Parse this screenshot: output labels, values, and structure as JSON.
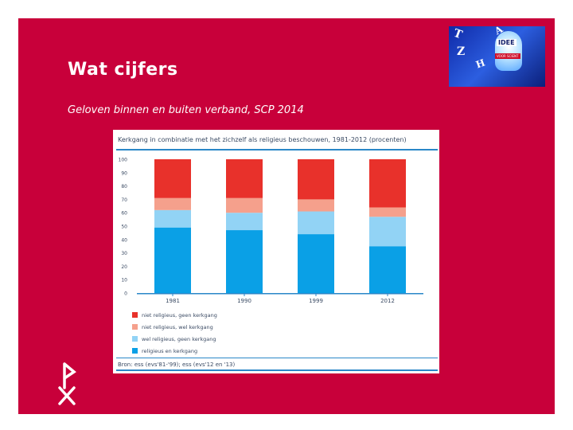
{
  "slide": {
    "title": "Wat cijfers",
    "subtitle": "Geloven binnen en buiten verband, SCP 2014",
    "background_color": "#c8003a",
    "logo": {
      "word": "IDEE",
      "tagline": "VOOR SCIENT",
      "icon": "lightbulb-logo"
    }
  },
  "chart_data": {
    "type": "bar",
    "stacked": true,
    "title": "Kerkgang in combinatie met het zichzelf als religieus beschouwen, 1981-2012 (procenten)",
    "categories": [
      "1981",
      "1990",
      "1999",
      "2012"
    ],
    "ylim": [
      0,
      100
    ],
    "yticks": [
      0,
      10,
      20,
      30,
      40,
      50,
      60,
      70,
      80,
      90,
      100
    ],
    "grid": false,
    "legend_position": "bottom-left",
    "series": [
      {
        "name": "religieus en kerkgang",
        "color": "#0aa0e6",
        "values": [
          49,
          47,
          44,
          35
        ]
      },
      {
        "name": "wel religieus, geen kerkgang",
        "color": "#92d3f5",
        "values": [
          13,
          13,
          17,
          22
        ]
      },
      {
        "name": "niet religieus, wel kerkgang",
        "color": "#f5a08c",
        "values": [
          9,
          11,
          9,
          7
        ]
      },
      {
        "name": "niet religieus, geen kerkgang",
        "color": "#e8312b",
        "values": [
          29,
          29,
          30,
          36
        ]
      }
    ],
    "source": "Bron: ess (evs'81-'99); ess (evs'12 en '13)"
  }
}
